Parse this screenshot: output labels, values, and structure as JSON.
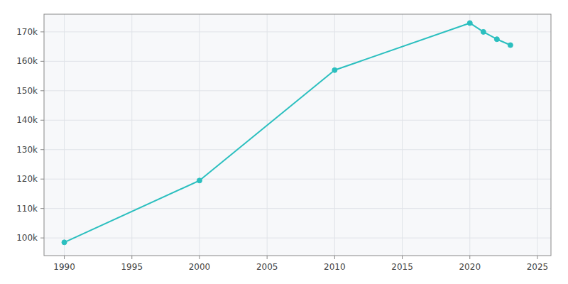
{
  "chart_data": {
    "type": "line",
    "x": [
      1990,
      2000,
      2010,
      2020,
      2021,
      2022,
      2023
    ],
    "values": [
      98500,
      119500,
      157000,
      173000,
      170000,
      167500,
      165500
    ],
    "color": "#2bbfbf",
    "marker": "circle",
    "xlim": [
      1988.5,
      2026
    ],
    "ylim": [
      94000,
      176000
    ],
    "xticks": [
      1990,
      1995,
      2000,
      2005,
      2010,
      2015,
      2020,
      2025
    ],
    "yticks": [
      {
        "value": 100000,
        "label": "100k"
      },
      {
        "value": 110000,
        "label": "110k"
      },
      {
        "value": 120000,
        "label": "120k"
      },
      {
        "value": 130000,
        "label": "130k"
      },
      {
        "value": 140000,
        "label": "140k"
      },
      {
        "value": 150000,
        "label": "150k"
      },
      {
        "value": 160000,
        "label": "160k"
      },
      {
        "value": 170000,
        "label": "170k"
      }
    ],
    "grid": true
  }
}
